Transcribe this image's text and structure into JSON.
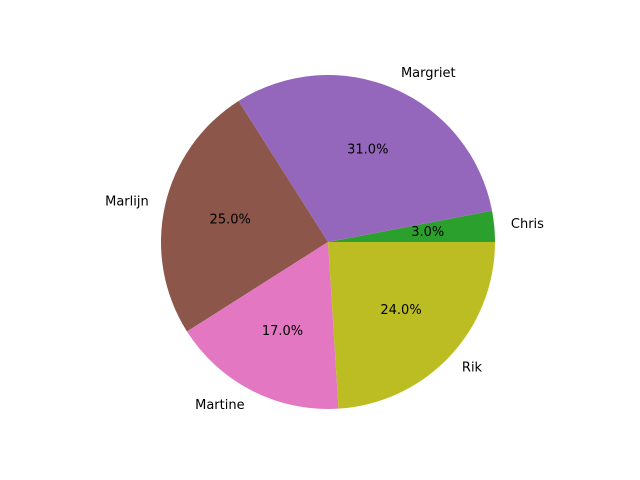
{
  "chart_data": {
    "type": "pie",
    "title": "",
    "start_angle_deg": 0,
    "direction": "counterclockwise",
    "slices": [
      {
        "label": "Chris",
        "value": 3.0,
        "pct_label": "3.0%",
        "color": "#2ca02c"
      },
      {
        "label": "Margriet",
        "value": 31.0,
        "pct_label": "31.0%",
        "color": "#9467bd"
      },
      {
        "label": "Marlijn",
        "value": 25.0,
        "pct_label": "25.0%",
        "color": "#8c564b"
      },
      {
        "label": "Martine",
        "value": 17.0,
        "pct_label": "17.0%",
        "color": "#e377c2"
      },
      {
        "label": "Rik",
        "value": 24.0,
        "pct_label": "24.0%",
        "color": "#bcbd22"
      }
    ]
  }
}
